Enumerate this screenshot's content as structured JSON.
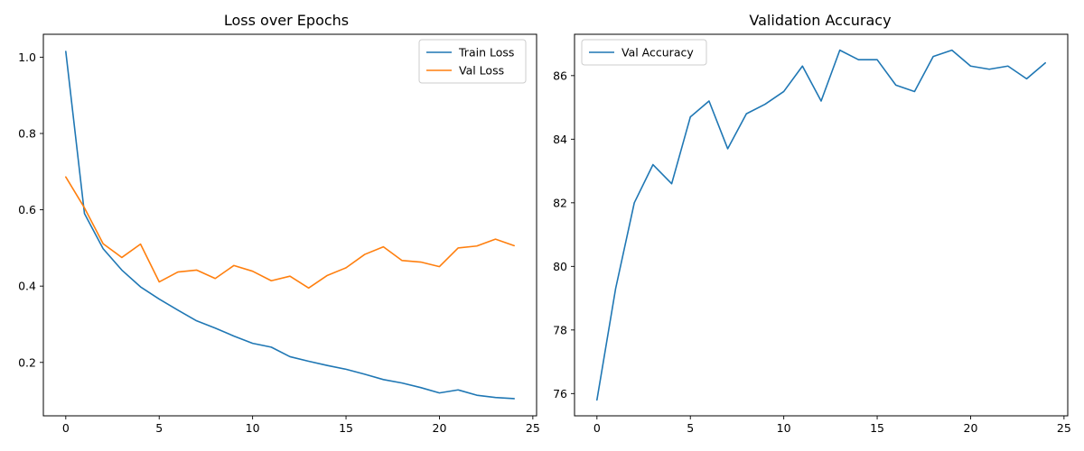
{
  "chart_data": [
    {
      "type": "line",
      "title": "Loss over Epochs",
      "xlabel": "",
      "ylabel": "",
      "xlim": [
        -1.2,
        25.2
      ],
      "ylim": [
        0.06,
        1.06
      ],
      "xticks": [
        0,
        5,
        10,
        15,
        20,
        25
      ],
      "yticks": [
        0.2,
        0.4,
        0.6,
        0.8,
        1.0
      ],
      "ytick_format": 1,
      "grid": false,
      "legend_position": "upper-right",
      "x": [
        0,
        1,
        2,
        3,
        4,
        5,
        6,
        7,
        8,
        9,
        10,
        11,
        12,
        13,
        14,
        15,
        16,
        17,
        18,
        19,
        20,
        21,
        22,
        23,
        24
      ],
      "series": [
        {
          "name": "Train Loss",
          "color": "#1f77b4",
          "values": [
            1.015,
            0.59,
            0.498,
            0.442,
            0.398,
            0.366,
            0.337,
            0.309,
            0.29,
            0.269,
            0.25,
            0.24,
            0.215,
            0.203,
            0.192,
            0.182,
            0.169,
            0.155,
            0.146,
            0.134,
            0.12,
            0.128,
            0.114,
            0.108,
            0.105
          ]
        },
        {
          "name": "Val Loss",
          "color": "#ff7f0e",
          "values": [
            0.686,
            0.605,
            0.511,
            0.475,
            0.51,
            0.411,
            0.437,
            0.442,
            0.42,
            0.454,
            0.439,
            0.414,
            0.426,
            0.395,
            0.428,
            0.448,
            0.483,
            0.503,
            0.467,
            0.463,
            0.451,
            0.5,
            0.505,
            0.523,
            0.506
          ]
        }
      ]
    },
    {
      "type": "line",
      "title": "Validation Accuracy",
      "xlabel": "",
      "ylabel": "",
      "xlim": [
        -1.2,
        25.2
      ],
      "ylim": [
        75.3,
        87.3
      ],
      "xticks": [
        0,
        5,
        10,
        15,
        20,
        25
      ],
      "yticks": [
        76,
        78,
        80,
        82,
        84,
        86
      ],
      "ytick_format": 0,
      "grid": false,
      "legend_position": "upper-left",
      "x": [
        0,
        1,
        2,
        3,
        4,
        5,
        6,
        7,
        8,
        9,
        10,
        11,
        12,
        13,
        14,
        15,
        16,
        17,
        18,
        19,
        20,
        21,
        22,
        23,
        24
      ],
      "series": [
        {
          "name": "Val Accuracy",
          "color": "#1f77b4",
          "values": [
            75.8,
            79.3,
            82.0,
            83.2,
            82.6,
            84.7,
            85.2,
            83.7,
            84.8,
            85.1,
            85.5,
            86.3,
            85.2,
            86.8,
            86.5,
            86.5,
            85.7,
            85.5,
            86.6,
            86.8,
            86.3,
            86.2,
            86.3,
            85.9,
            86.4
          ]
        }
      ]
    }
  ]
}
